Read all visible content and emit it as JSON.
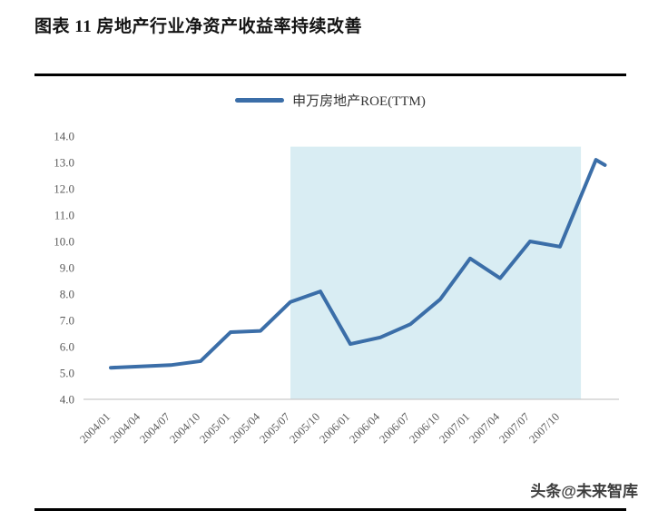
{
  "header": {
    "title": "图表 11  房地产行业净资产收益率持续改善"
  },
  "footer": {
    "watermark": "头条@未来智库"
  },
  "chart_data": {
    "type": "line",
    "title": "",
    "legend": {
      "label": "申万房地产ROE(TTM)",
      "position": "top-center"
    },
    "categories": [
      "2004/01",
      "2004/04",
      "2004/07",
      "2004/10",
      "2005/01",
      "2005/04",
      "2005/07",
      "2005/10",
      "2006/01",
      "2006/04",
      "2006/07",
      "2006/10",
      "2007/01",
      "2007/04",
      "2007/07",
      "2007/10"
    ],
    "series": [
      {
        "name": "申万房地产ROE(TTM)",
        "x": [
          0,
          1,
          2,
          3,
          4,
          5,
          6,
          7,
          8,
          9,
          10,
          11,
          12,
          13,
          14,
          15,
          16.2,
          16.5
        ],
        "values": [
          5.2,
          5.25,
          5.3,
          5.45,
          6.55,
          6.6,
          7.7,
          8.1,
          6.1,
          6.35,
          6.85,
          7.8,
          9.35,
          8.6,
          10.0,
          9.8,
          13.1,
          12.9
        ]
      }
    ],
    "ylim": [
      4.0,
      14.0
    ],
    "ytick_step": 1.0,
    "grid": false,
    "highlight_band": {
      "from_index": 6,
      "to_index": 15.7,
      "top_value": 13.6,
      "color": "#d9edf3"
    },
    "line_color": "#3b6ea8",
    "axis_line_color": "#c9c9c9",
    "axis_text_color": "#595959"
  }
}
